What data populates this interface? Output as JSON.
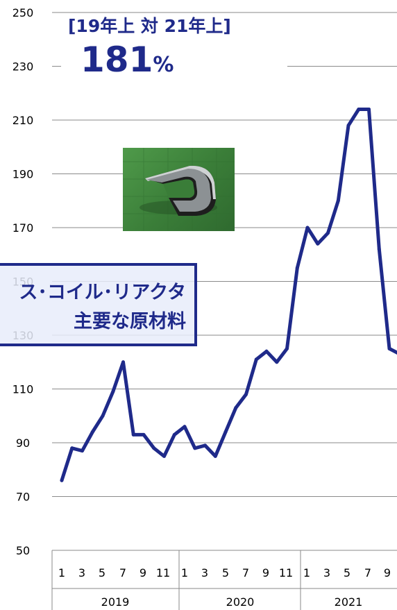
{
  "chart_data": {
    "type": "line",
    "ylim": [
      50,
      250
    ],
    "y_ticks": [
      "250",
      "230",
      "210",
      "190",
      "170",
      "150",
      "130",
      "110",
      "90",
      "70",
      "50"
    ],
    "month_tick_labels": [
      "1",
      "3",
      "5",
      "7",
      "9",
      "11",
      "1",
      "3",
      "5",
      "7",
      "9",
      "11",
      "1",
      "3",
      "5",
      "7",
      "9"
    ],
    "years": [
      "2019",
      "2020",
      "2021"
    ],
    "x_months": [
      "2019-01",
      "2019-02",
      "2019-03",
      "2019-04",
      "2019-05",
      "2019-06",
      "2019-07",
      "2019-08",
      "2019-09",
      "2019-10",
      "2019-11",
      "2019-12",
      "2020-01",
      "2020-02",
      "2020-03",
      "2020-04",
      "2020-05",
      "2020-06",
      "2020-07",
      "2020-08",
      "2020-09",
      "2020-10",
      "2020-11",
      "2020-12",
      "2021-01",
      "2021-02",
      "2021-03",
      "2021-04",
      "2021-05",
      "2021-06",
      "2021-07",
      "2021-08",
      "2021-09",
      "2021-10"
    ],
    "values": [
      76,
      88,
      87,
      94,
      100,
      109,
      120,
      93,
      93,
      88,
      85,
      93,
      96,
      88,
      89,
      85,
      94,
      103,
      108,
      121,
      124,
      120,
      125,
      155,
      170,
      164,
      168,
      180,
      208,
      214,
      214,
      162,
      125,
      123
    ],
    "grid": true,
    "line_color": "#1f2a8a"
  },
  "headline": {
    "top": "[19年上 対 21年上]",
    "value": "181",
    "unit": "%"
  },
  "callout": {
    "line1": "ス･コイル･リアクタ",
    "line2": "主要な原材料"
  },
  "photo": {
    "subject": "metal-core-sample"
  }
}
